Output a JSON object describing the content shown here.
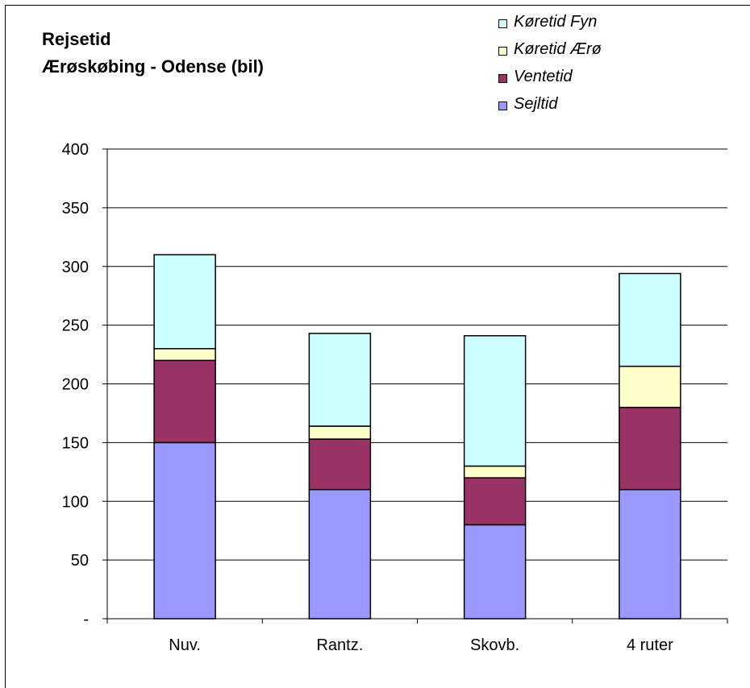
{
  "title_lines": [
    "Rejsetid",
    "Ærøskøbing - Odense (bil)"
  ],
  "legend": [
    {
      "label": "Køretid Fyn",
      "color": "#ccffff"
    },
    {
      "label": "Køretid Ærø",
      "color": "#ffffcc"
    },
    {
      "label": "Ventetid",
      "color": "#993366"
    },
    {
      "label": "Sejltid",
      "color": "#9999ff"
    }
  ],
  "chart_data": {
    "type": "bar",
    "stacked": true,
    "categories": [
      "Nuv.",
      "Rantz.",
      "Skovb.",
      "4 ruter"
    ],
    "series": [
      {
        "name": "Sejltid",
        "color": "#9999ff",
        "values": [
          150,
          110,
          80,
          110
        ]
      },
      {
        "name": "Ventetid",
        "color": "#993366",
        "values": [
          70,
          43,
          40,
          70
        ]
      },
      {
        "name": "Køretid Ærø",
        "color": "#ffffcc",
        "values": [
          10,
          11,
          10,
          35
        ]
      },
      {
        "name": "Køretid Fyn",
        "color": "#ccffff",
        "values": [
          80,
          79,
          111,
          79
        ]
      }
    ],
    "ylim": [
      0,
      400
    ],
    "yticks": [
      0,
      50,
      100,
      150,
      200,
      250,
      300,
      350,
      400
    ],
    "ytick_labels": [
      "-",
      "50",
      "100",
      "150",
      "200",
      "250",
      "300",
      "350",
      "400"
    ],
    "grid": true,
    "legend_position": "top-right",
    "title": "Rejsetid Ærøskøbing - Odense (bil)"
  }
}
